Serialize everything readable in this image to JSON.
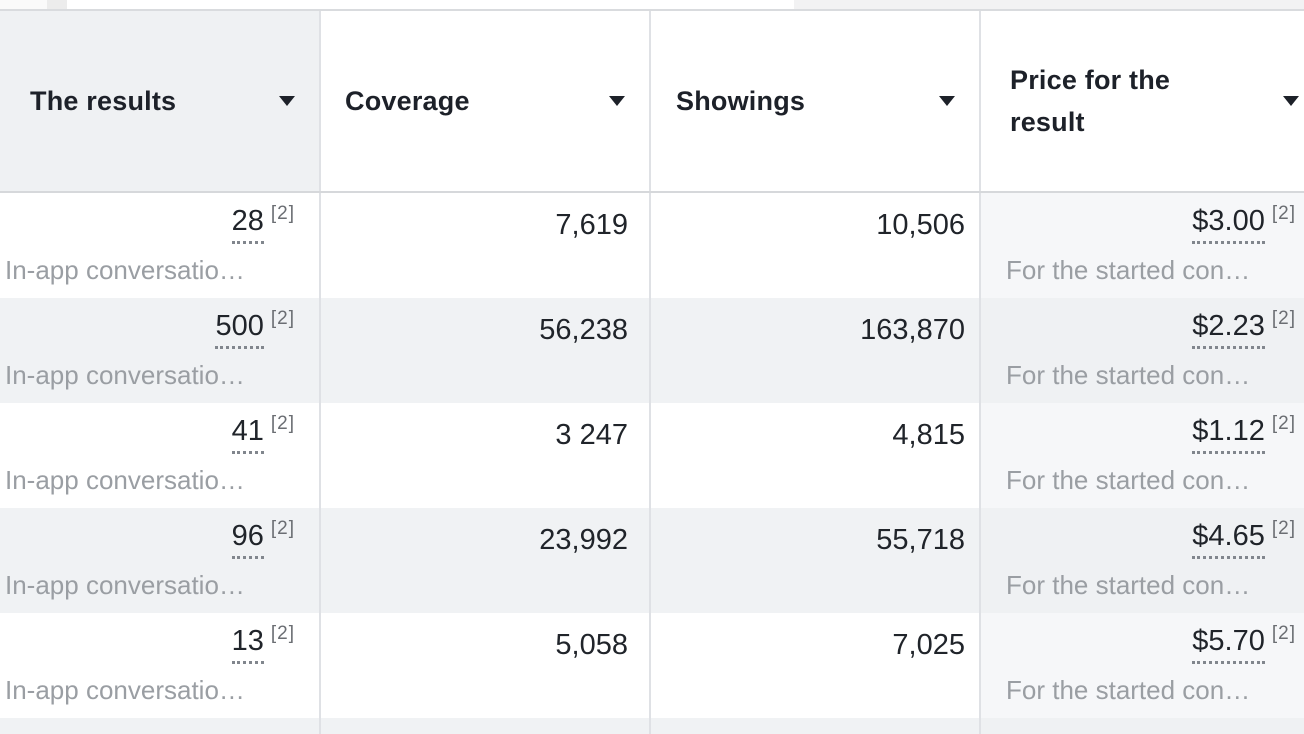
{
  "table": {
    "columns": [
      {
        "id": "results",
        "label": "The results"
      },
      {
        "id": "coverage",
        "label": "Coverage"
      },
      {
        "id": "showings",
        "label": "Showings"
      },
      {
        "id": "price",
        "label": "Price for the result"
      }
    ],
    "rows": [
      {
        "results": {
          "value": "28",
          "sup": "[2]",
          "desc": "In-app conversatio…"
        },
        "coverage": "7,619",
        "showings": "10,506",
        "price": {
          "value": "$3.00",
          "sup": "[2]",
          "desc": "For the started con…"
        }
      },
      {
        "results": {
          "value": "500",
          "sup": "[2]",
          "desc": "In-app conversatio…"
        },
        "coverage": "56,238",
        "showings": "163,870",
        "price": {
          "value": "$2.23",
          "sup": "[2]",
          "desc": "For the started con…"
        }
      },
      {
        "results": {
          "value": "41",
          "sup": "[2]",
          "desc": "In-app conversatio…"
        },
        "coverage": "3 247",
        "showings": "4,815",
        "price": {
          "value": "$1.12",
          "sup": "[2]",
          "desc": "For the started con…"
        }
      },
      {
        "results": {
          "value": "96",
          "sup": "[2]",
          "desc": "In-app conversatio…"
        },
        "coverage": "23,992",
        "showings": "55,718",
        "price": {
          "value": "$4.65",
          "sup": "[2]",
          "desc": "For the started con…"
        }
      },
      {
        "results": {
          "value": "13",
          "sup": "[2]",
          "desc": "In-app conversatio…"
        },
        "coverage": "5,058",
        "showings": "7,025",
        "price": {
          "value": "$5.70",
          "sup": "[2]",
          "desc": "For the started con…"
        }
      }
    ]
  },
  "icons": {
    "column_menu": "chevron-down-icon"
  },
  "colors": {
    "header_highlight_bg": "#eff1f3",
    "row_alt_bg": "#f0f2f4",
    "price_column_tint": "#f6f7f9",
    "divider": "#dfe1e5",
    "text_primary": "#20242a",
    "text_secondary": "#9a9ea3"
  }
}
